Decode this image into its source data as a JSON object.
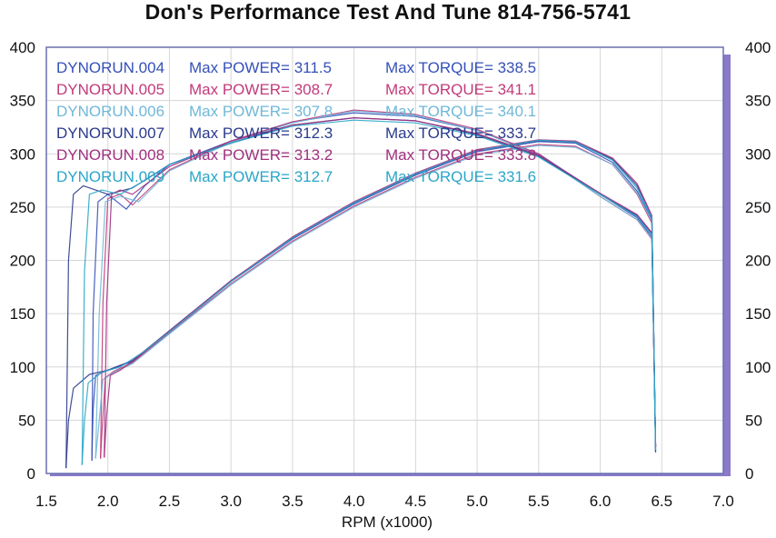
{
  "chart_data": {
    "type": "line",
    "title": "Don's Performance Test And Tune 814-756-5741",
    "xlabel": "RPM (x1000)",
    "ylabel": "",
    "xlim": [
      1.5,
      7.0
    ],
    "ylim": [
      0,
      400
    ],
    "x_ticks": [
      "1.5",
      "2.0",
      "2.5",
      "3.0",
      "3.5",
      "4.0",
      "4.5",
      "5.0",
      "5.5",
      "6.0",
      "6.5",
      "7.0"
    ],
    "y_ticks": [
      "0",
      "50",
      "100",
      "150",
      "200",
      "250",
      "300",
      "350",
      "400"
    ],
    "y2_ticks": [
      "0",
      "50",
      "100",
      "150",
      "200",
      "250",
      "300",
      "350",
      "400"
    ],
    "grid": true,
    "legend_position": "top-left",
    "series": [
      {
        "name": "DYNORUN.004",
        "max_power_label": "Max POWER= 311.5",
        "max_torque_label": "Max TORQUE= 338.5",
        "color": "#3550b8",
        "power": {
          "x": [
            1.87,
            1.88,
            1.9,
            2.0,
            2.2,
            2.5,
            3.0,
            3.5,
            4.0,
            4.5,
            5.0,
            5.5,
            5.8,
            6.1,
            6.3,
            6.42,
            6.45
          ],
          "y": [
            12,
            60,
            92,
            97,
            105,
            133,
            180,
            220,
            253,
            280,
            302,
            311.5,
            310,
            292,
            265,
            238,
            25
          ]
        },
        "torque": {
          "x": [
            1.87,
            1.88,
            1.92,
            2.0,
            2.15,
            2.3,
            2.5,
            3.0,
            3.5,
            4.0,
            4.5,
            5.0,
            5.5,
            6.0,
            6.3,
            6.42,
            6.45
          ],
          "y": [
            12,
            150,
            255,
            262,
            248,
            270,
            290,
            312,
            330,
            338.5,
            335,
            322,
            300,
            262,
            240,
            222,
            25
          ]
        }
      },
      {
        "name": "DYNORUN.005",
        "max_power_label": "Max POWER= 308.7",
        "max_torque_label": "Max TORQUE= 341.1",
        "color": "#c23a7a",
        "power": {
          "x": [
            1.94,
            1.96,
            1.98,
            2.05,
            2.2,
            2.5,
            3.0,
            3.5,
            4.0,
            4.5,
            5.0,
            5.5,
            5.8,
            6.1,
            6.3,
            6.42,
            6.45
          ],
          "y": [
            14,
            55,
            90,
            96,
            104,
            132,
            178,
            218,
            251,
            278,
            300,
            308.7,
            307,
            290,
            262,
            235,
            25
          ]
        },
        "torque": {
          "x": [
            1.94,
            1.96,
            2.0,
            2.1,
            2.2,
            2.5,
            3.0,
            3.5,
            4.0,
            4.5,
            5.0,
            5.5,
            6.0,
            6.3,
            6.42,
            6.45
          ],
          "y": [
            14,
            160,
            258,
            262,
            252,
            285,
            312,
            330,
            341.1,
            337,
            323,
            300,
            260,
            238,
            220,
            25
          ]
        }
      },
      {
        "name": "DYNORUN.006",
        "max_power_label": "Max POWER= 307.8",
        "max_torque_label": "Max TORQUE= 340.1",
        "color": "#6fb8d8",
        "power": {
          "x": [
            1.9,
            1.93,
            1.96,
            2.05,
            2.2,
            2.5,
            3.0,
            3.5,
            4.0,
            4.5,
            5.0,
            5.5,
            5.8,
            6.1,
            6.3,
            6.42,
            6.45
          ],
          "y": [
            14,
            50,
            88,
            95,
            103,
            131,
            177,
            217,
            250,
            277,
            299,
            307.8,
            306,
            290,
            263,
            237,
            25
          ]
        },
        "torque": {
          "x": [
            1.9,
            1.93,
            1.98,
            2.1,
            2.25,
            2.5,
            3.0,
            3.5,
            4.0,
            4.5,
            5.0,
            5.5,
            6.0,
            6.3,
            6.42,
            6.45
          ],
          "y": [
            14,
            150,
            255,
            260,
            255,
            284,
            311,
            329,
            340.1,
            336,
            322,
            299,
            260,
            238,
            221,
            25
          ]
        }
      },
      {
        "name": "DYNORUN.007",
        "max_power_label": "Max POWER= 312.3",
        "max_torque_label": "Max TORQUE= 333.7",
        "color": "#2a3a8c",
        "power": {
          "x": [
            1.66,
            1.68,
            1.72,
            1.85,
            2.0,
            2.2,
            2.5,
            3.0,
            3.5,
            4.0,
            4.5,
            5.0,
            5.5,
            5.8,
            6.1,
            6.3,
            6.42,
            6.45
          ],
          "y": [
            5,
            50,
            80,
            93,
            97,
            106,
            134,
            181,
            221,
            254,
            281,
            303,
            312.3,
            311,
            295,
            270,
            240,
            20
          ]
        },
        "torque": {
          "x": [
            1.66,
            1.68,
            1.72,
            1.8,
            1.9,
            2.0,
            2.2,
            2.5,
            3.0,
            3.5,
            4.0,
            4.5,
            5.0,
            5.5,
            6.0,
            6.3,
            6.42,
            6.45
          ],
          "y": [
            5,
            200,
            262,
            270,
            266,
            262,
            268,
            290,
            310,
            327,
            333.7,
            331,
            318,
            298,
            262,
            242,
            225,
            20
          ]
        }
      },
      {
        "name": "DYNORUN.008",
        "max_power_label": "Max POWER= 313.2",
        "max_torque_label": "Max TORQUE= 333.8",
        "color": "#a0307f",
        "power": {
          "x": [
            1.97,
            1.99,
            2.02,
            2.1,
            2.2,
            2.5,
            3.0,
            3.5,
            4.0,
            4.5,
            5.0,
            5.5,
            5.8,
            6.1,
            6.3,
            6.42,
            6.45
          ],
          "y": [
            15,
            55,
            92,
            97,
            105,
            134,
            181,
            222,
            255,
            282,
            304,
            313.2,
            312,
            296,
            272,
            242,
            25
          ]
        },
        "torque": {
          "x": [
            1.97,
            1.99,
            2.03,
            2.1,
            2.2,
            2.5,
            3.0,
            3.5,
            4.0,
            4.5,
            5.0,
            5.5,
            6.0,
            6.3,
            6.42,
            6.45
          ],
          "y": [
            15,
            160,
            262,
            266,
            262,
            288,
            312,
            327,
            333.8,
            331,
            319,
            299,
            263,
            243,
            226,
            25
          ]
        }
      },
      {
        "name": "DYNORUN.009",
        "max_power_label": "Max POWER= 312.7",
        "max_torque_label": "Max TORQUE= 331.6",
        "color": "#2aa6c8",
        "power": {
          "x": [
            1.79,
            1.81,
            1.84,
            1.95,
            2.1,
            2.3,
            2.5,
            3.0,
            3.5,
            4.0,
            4.5,
            5.0,
            5.5,
            5.8,
            6.1,
            6.3,
            6.42,
            6.45
          ],
          "y": [
            8,
            50,
            85,
            95,
            100,
            115,
            133,
            180,
            221,
            254,
            281,
            303,
            312.7,
            311,
            294,
            268,
            240,
            22
          ]
        },
        "torque": {
          "x": [
            1.79,
            1.81,
            1.85,
            1.95,
            2.1,
            2.3,
            2.5,
            3.0,
            3.5,
            4.0,
            4.5,
            5.0,
            5.5,
            6.0,
            6.3,
            6.42,
            6.45
          ],
          "y": [
            8,
            190,
            262,
            266,
            262,
            275,
            290,
            310,
            326,
            331.6,
            329,
            317,
            297,
            262,
            241,
            224,
            22
          ]
        }
      }
    ]
  }
}
